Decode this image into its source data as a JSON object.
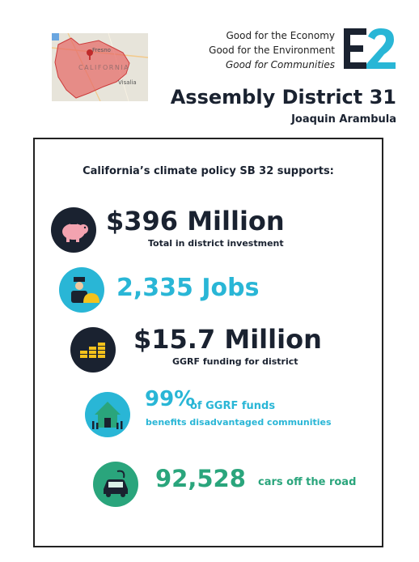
{
  "header": {
    "map": {
      "place1": "Fresno",
      "place2": "Visalia",
      "state": "CALIFORNIA"
    },
    "taglines": [
      "Good for the Economy",
      "Good for the Environment",
      "Good for Communities"
    ],
    "logo_text": "E2",
    "district_title": "Assembly District 31",
    "member": "Joaquin Arambula"
  },
  "panel": {
    "title": "California’s climate policy SB 32 supports:",
    "stats": [
      {
        "icon": "piggy-bank-icon",
        "value": "$396 Million",
        "label": "Total in district investment"
      },
      {
        "icon": "worker-icon",
        "value": "2,335 Jobs"
      },
      {
        "icon": "coins-icon",
        "value": "$15.7 Million",
        "label": "GGRF funding for district"
      },
      {
        "icon": "community-house-icon",
        "value": "99%",
        "label1": "of GGRF funds",
        "label2": "benefits disadvantaged communities"
      },
      {
        "icon": "electric-car-icon",
        "value": "92,528",
        "label": "cars off the road"
      }
    ]
  },
  "colors": {
    "navy": "#1a2230",
    "cyan": "#29b6d6",
    "teal": "#2aa57c",
    "map_red": "#e66a66"
  }
}
